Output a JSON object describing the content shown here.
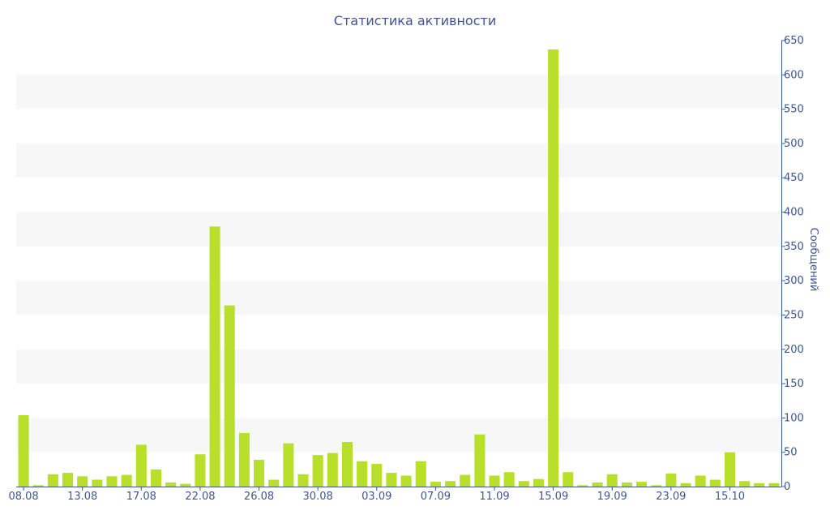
{
  "chart_data": {
    "type": "bar",
    "title": "Статистика активности",
    "xlabel": "",
    "ylabel": "Сообщений",
    "ylim": [
      0,
      650
    ],
    "y_ticks": [
      0,
      50,
      100,
      150,
      200,
      250,
      300,
      350,
      400,
      450,
      500,
      550,
      600,
      650
    ],
    "y_axis_side": "right",
    "grid": "alternating horizontal bands",
    "legend": "none",
    "bar_color": "#b8e02a",
    "text_color": "#3e5591",
    "band_color": "#f7f7f7",
    "x_tick_labels": [
      {
        "index": 0,
        "label": "08.08"
      },
      {
        "index": 4,
        "label": "13.08"
      },
      {
        "index": 8,
        "label": "17.08"
      },
      {
        "index": 12,
        "label": "22.08"
      },
      {
        "index": 16,
        "label": "26.08"
      },
      {
        "index": 20,
        "label": "30.08"
      },
      {
        "index": 24,
        "label": "03.09"
      },
      {
        "index": 28,
        "label": "07.09"
      },
      {
        "index": 32,
        "label": "11.09"
      },
      {
        "index": 36,
        "label": "15.09"
      },
      {
        "index": 40,
        "label": "19.09"
      },
      {
        "index": 44,
        "label": "23.09"
      },
      {
        "index": 48,
        "label": "15.10"
      }
    ],
    "values": [
      104,
      2,
      18,
      20,
      15,
      10,
      15,
      17,
      61,
      25,
      6,
      4,
      47,
      379,
      264,
      78,
      39,
      10,
      63,
      18,
      46,
      49,
      65,
      37,
      33,
      20,
      16,
      37,
      7,
      8,
      17,
      76,
      16,
      21,
      8,
      11,
      637,
      21,
      2,
      6,
      18,
      6,
      7,
      2,
      19,
      5,
      16,
      10,
      50,
      8,
      5,
      5
    ]
  }
}
